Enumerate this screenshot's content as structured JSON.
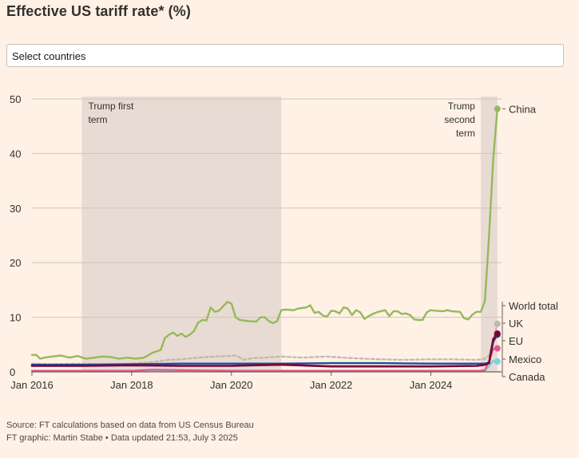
{
  "title": "Effective US tariff rate* (%)",
  "selector": {
    "placeholder": "Select countries"
  },
  "source_line": "Source: FT calculations based on data from US Census Bureau",
  "credit_line": "FT graphic: Martin Stabe • Data updated 21:53, July 3 2025",
  "colors": {
    "background": "#fff1e5",
    "shade": "#e8dbd3",
    "china": "#96b95a",
    "world_total": "#c2b6ae",
    "uk": "#7a0036",
    "eu": "#1f4f9c",
    "mexico": "#e0588c",
    "canada": "#7fd1e0",
    "grid": "#cfc4bb",
    "text": "#33302e"
  },
  "chart_data": {
    "type": "line",
    "title": "Effective US tariff rate* (%)",
    "xlabel": "",
    "ylabel": "",
    "ylim": [
      0,
      50
    ],
    "yticks": [
      "0",
      "10",
      "20",
      "30",
      "40",
      "50"
    ],
    "xlim": [
      "2016-01",
      "2025-06"
    ],
    "xticks": [
      {
        "label": "Jan 2016",
        "date": "2016-01"
      },
      {
        "label": "Jan 2018",
        "date": "2018-01"
      },
      {
        "label": "Jan 2020",
        "date": "2020-01"
      },
      {
        "label": "Jan 2022",
        "date": "2022-01"
      },
      {
        "label": "Jan 2024",
        "date": "2024-01"
      }
    ],
    "grid": true,
    "shaded_periods": [
      {
        "label": "Trump first term",
        "label_lines": [
          "Trump first",
          "term"
        ],
        "start": "2017-01",
        "end": "2021-01"
      },
      {
        "label": "Trump second term",
        "label_lines": [
          "Trump",
          "second",
          "term"
        ],
        "start": "2025-01",
        "end": "2025-05"
      }
    ],
    "series": [
      {
        "name": "China",
        "style": "solid",
        "points": [
          [
            "2016-01",
            3.1
          ],
          [
            "2016-02",
            3.1
          ],
          [
            "2016-03",
            2.4
          ],
          [
            "2016-04",
            2.6
          ],
          [
            "2016-06",
            2.8
          ],
          [
            "2016-08",
            3.0
          ],
          [
            "2016-10",
            2.6
          ],
          [
            "2016-12",
            2.9
          ],
          [
            "2017-02",
            2.4
          ],
          [
            "2017-04",
            2.6
          ],
          [
            "2017-06",
            2.8
          ],
          [
            "2017-08",
            2.7
          ],
          [
            "2017-10",
            2.4
          ],
          [
            "2017-12",
            2.6
          ],
          [
            "2018-02",
            2.4
          ],
          [
            "2018-04",
            2.6
          ],
          [
            "2018-06",
            3.5
          ],
          [
            "2018-08",
            4.0
          ],
          [
            "2018-09",
            6.2
          ],
          [
            "2018-10",
            6.8
          ],
          [
            "2018-11",
            7.2
          ],
          [
            "2018-12",
            6.6
          ],
          [
            "2019-01",
            7.0
          ],
          [
            "2019-02",
            6.4
          ],
          [
            "2019-03",
            6.8
          ],
          [
            "2019-04",
            7.5
          ],
          [
            "2019-05",
            9.0
          ],
          [
            "2019-06",
            9.5
          ],
          [
            "2019-07",
            9.4
          ],
          [
            "2019-08",
            11.8
          ],
          [
            "2019-09",
            11.0
          ],
          [
            "2019-10",
            11.2
          ],
          [
            "2019-11",
            12.0
          ],
          [
            "2019-12",
            12.8
          ],
          [
            "2020-01",
            12.5
          ],
          [
            "2020-02",
            10.0
          ],
          [
            "2020-03",
            9.5
          ],
          [
            "2020-05",
            9.3
          ],
          [
            "2020-07",
            9.2
          ],
          [
            "2020-08",
            10.0
          ],
          [
            "2020-09",
            10.0
          ],
          [
            "2020-10",
            9.3
          ],
          [
            "2020-11",
            8.9
          ],
          [
            "2020-12",
            9.3
          ],
          [
            "2021-01",
            11.3
          ],
          [
            "2021-02",
            11.4
          ],
          [
            "2021-04",
            11.3
          ],
          [
            "2021-05",
            11.6
          ],
          [
            "2021-07",
            11.8
          ],
          [
            "2021-08",
            12.2
          ],
          [
            "2021-09",
            10.8
          ],
          [
            "2021-10",
            11.0
          ],
          [
            "2021-11",
            10.3
          ],
          [
            "2021-12",
            10.1
          ],
          [
            "2022-01",
            11.2
          ],
          [
            "2022-02",
            11.1
          ],
          [
            "2022-03",
            10.7
          ],
          [
            "2022-04",
            11.8
          ],
          [
            "2022-05",
            11.6
          ],
          [
            "2022-06",
            10.4
          ],
          [
            "2022-07",
            11.3
          ],
          [
            "2022-08",
            10.9
          ],
          [
            "2022-09",
            9.7
          ],
          [
            "2022-10",
            10.2
          ],
          [
            "2022-11",
            10.6
          ],
          [
            "2022-12",
            10.9
          ],
          [
            "2023-02",
            11.3
          ],
          [
            "2023-03",
            10.2
          ],
          [
            "2023-04",
            11.1
          ],
          [
            "2023-05",
            11.1
          ],
          [
            "2023-06",
            10.6
          ],
          [
            "2023-07",
            10.7
          ],
          [
            "2023-08",
            10.4
          ],
          [
            "2023-09",
            9.6
          ],
          [
            "2023-10",
            9.5
          ],
          [
            "2023-11",
            9.5
          ],
          [
            "2023-12",
            10.9
          ],
          [
            "2024-01",
            11.3
          ],
          [
            "2024-02",
            11.2
          ],
          [
            "2024-04",
            11.1
          ],
          [
            "2024-05",
            11.3
          ],
          [
            "2024-06",
            11.1
          ],
          [
            "2024-08",
            11.0
          ],
          [
            "2024-09",
            9.8
          ],
          [
            "2024-10",
            9.6
          ],
          [
            "2024-11",
            10.5
          ],
          [
            "2024-12",
            11.0
          ],
          [
            "2025-01",
            11.0
          ],
          [
            "2025-02",
            13.0
          ],
          [
            "2025-03",
            25.0
          ],
          [
            "2025-04",
            39.0
          ],
          [
            "2025-05",
            48.2
          ]
        ],
        "end_value": 48.2
      },
      {
        "name": "World total",
        "style": "dashed",
        "points": [
          [
            "2016-01",
            1.5
          ],
          [
            "2016-06",
            1.4
          ],
          [
            "2017-01",
            1.5
          ],
          [
            "2017-06",
            1.4
          ],
          [
            "2018-01",
            1.5
          ],
          [
            "2018-06",
            1.8
          ],
          [
            "2018-10",
            2.2
          ],
          [
            "2019-01",
            2.3
          ],
          [
            "2019-05",
            2.6
          ],
          [
            "2019-09",
            2.8
          ],
          [
            "2019-12",
            2.9
          ],
          [
            "2020-02",
            3.0
          ],
          [
            "2020-04",
            2.2
          ],
          [
            "2020-06",
            2.5
          ],
          [
            "2020-09",
            2.6
          ],
          [
            "2021-01",
            2.8
          ],
          [
            "2021-06",
            2.6
          ],
          [
            "2021-12",
            2.8
          ],
          [
            "2022-06",
            2.5
          ],
          [
            "2023-01",
            2.3
          ],
          [
            "2023-06",
            2.2
          ],
          [
            "2024-01",
            2.3
          ],
          [
            "2024-06",
            2.3
          ],
          [
            "2024-12",
            2.2
          ],
          [
            "2025-01",
            2.3
          ],
          [
            "2025-02",
            2.4
          ],
          [
            "2025-03",
            3.0
          ],
          [
            "2025-04",
            6.0
          ],
          [
            "2025-05",
            8.8
          ]
        ],
        "end_value": 8.8
      },
      {
        "name": "UK",
        "style": "solid",
        "points": [
          [
            "2016-01",
            1.1
          ],
          [
            "2017-01",
            1.1
          ],
          [
            "2018-01",
            1.2
          ],
          [
            "2019-01",
            1.1
          ],
          [
            "2020-01",
            1.1
          ],
          [
            "2020-06",
            1.2
          ],
          [
            "2021-01",
            1.3
          ],
          [
            "2022-01",
            1.0
          ],
          [
            "2023-01",
            1.0
          ],
          [
            "2024-01",
            1.0
          ],
          [
            "2024-12",
            1.1
          ],
          [
            "2025-01",
            1.2
          ],
          [
            "2025-02",
            1.3
          ],
          [
            "2025-03",
            1.6
          ],
          [
            "2025-04",
            6.0
          ],
          [
            "2025-05",
            7.0
          ]
        ],
        "end_value": 7.0
      },
      {
        "name": "EU",
        "style": "solid",
        "points": [
          [
            "2016-01",
            1.3
          ],
          [
            "2017-01",
            1.3
          ],
          [
            "2018-01",
            1.4
          ],
          [
            "2019-01",
            1.5
          ],
          [
            "2020-01",
            1.5
          ],
          [
            "2021-01",
            1.5
          ],
          [
            "2022-01",
            1.6
          ],
          [
            "2023-01",
            1.6
          ],
          [
            "2024-01",
            1.5
          ],
          [
            "2025-01",
            1.5
          ],
          [
            "2025-02",
            1.5
          ],
          [
            "2025-03",
            1.7
          ],
          [
            "2025-04",
            5.5
          ],
          [
            "2025-05",
            6.8
          ]
        ],
        "end_value": 6.8
      },
      {
        "name": "Mexico",
        "style": "solid",
        "points": [
          [
            "2016-01",
            0.2
          ],
          [
            "2018-01",
            0.2
          ],
          [
            "2018-06",
            0.4
          ],
          [
            "2019-01",
            0.3
          ],
          [
            "2020-01",
            0.2
          ],
          [
            "2022-01",
            0.2
          ],
          [
            "2024-01",
            0.2
          ],
          [
            "2025-01",
            0.2
          ],
          [
            "2025-02",
            0.3
          ],
          [
            "2025-03",
            2.0
          ],
          [
            "2025-04",
            4.2
          ],
          [
            "2025-05",
            4.3
          ]
        ],
        "end_value": 4.3
      },
      {
        "name": "Canada",
        "style": "solid",
        "points": [
          [
            "2016-01",
            0.1
          ],
          [
            "2018-01",
            0.1
          ],
          [
            "2018-06",
            0.3
          ],
          [
            "2019-01",
            0.2
          ],
          [
            "2020-01",
            0.1
          ],
          [
            "2022-01",
            0.1
          ],
          [
            "2024-01",
            0.1
          ],
          [
            "2025-01",
            0.1
          ],
          [
            "2025-02",
            0.2
          ],
          [
            "2025-03",
            1.0
          ],
          [
            "2025-04",
            2.0
          ],
          [
            "2025-05",
            1.9
          ]
        ],
        "end_value": 1.9
      }
    ]
  }
}
